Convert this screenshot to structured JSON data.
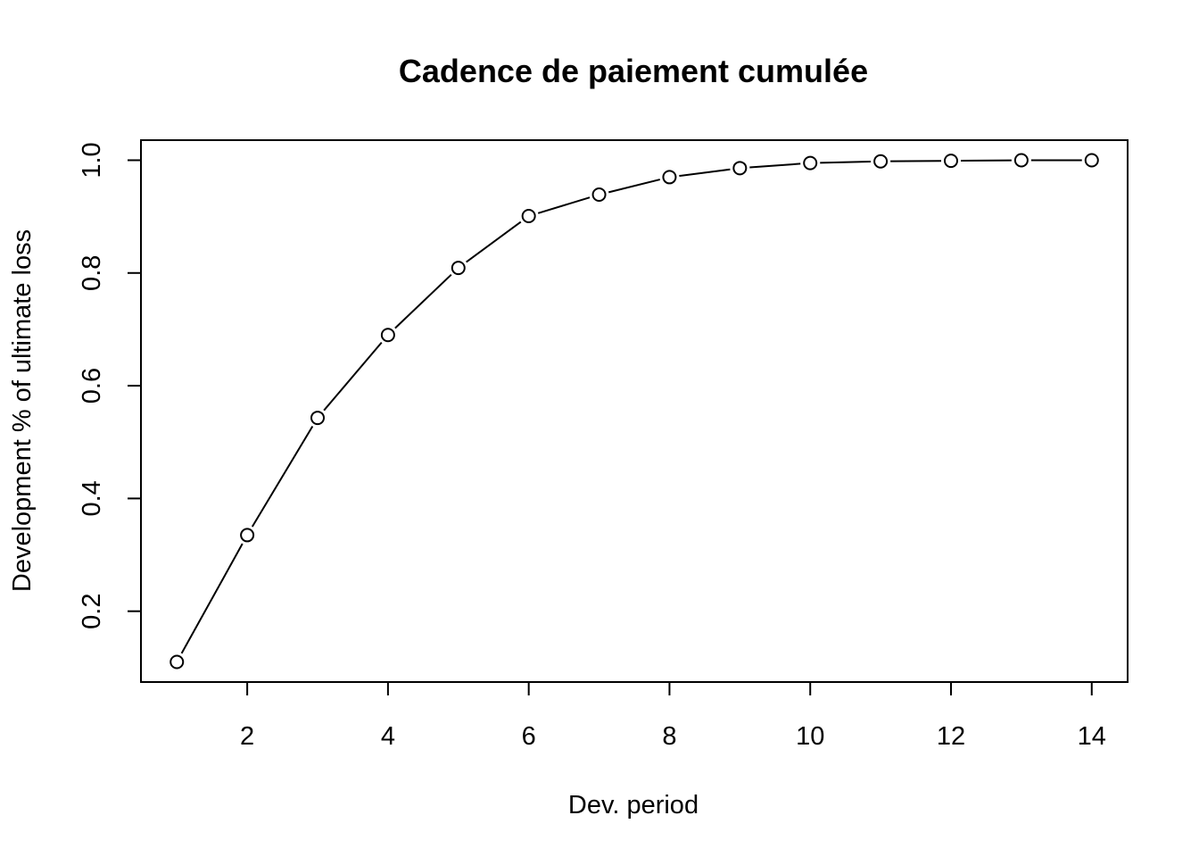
{
  "chart_data": {
    "type": "line",
    "title": "Cadence de paiement cumulée",
    "xlabel": "Dev. period",
    "ylabel": "Development % of ultimate loss",
    "x": [
      1,
      2,
      3,
      4,
      5,
      6,
      7,
      8,
      9,
      10,
      11,
      12,
      13,
      14
    ],
    "series": [
      {
        "values": [
          0.11,
          0.335,
          0.543,
          0.69,
          0.809,
          0.901,
          0.939,
          0.97,
          0.986,
          0.995,
          0.998,
          0.999,
          1.0,
          1.0
        ]
      }
    ],
    "xlim": [
      0.49,
      14.51
    ],
    "ylim": [
      0.0744,
      1.0356
    ],
    "xticks": [
      2,
      4,
      6,
      8,
      10,
      12,
      14
    ],
    "yticks": [
      0.2,
      0.4,
      0.6,
      0.8,
      1.0
    ],
    "xtick_labels": [
      "2",
      "4",
      "6",
      "8",
      "10",
      "12",
      "14"
    ],
    "ytick_labels": [
      "0.2",
      "0.4",
      "0.6",
      "0.8",
      "1.0"
    ],
    "marker": "open-circle",
    "line_style": "solid-with-gaps",
    "grid": false,
    "legend": "none",
    "line_color": "#000000",
    "background": "#ffffff"
  }
}
